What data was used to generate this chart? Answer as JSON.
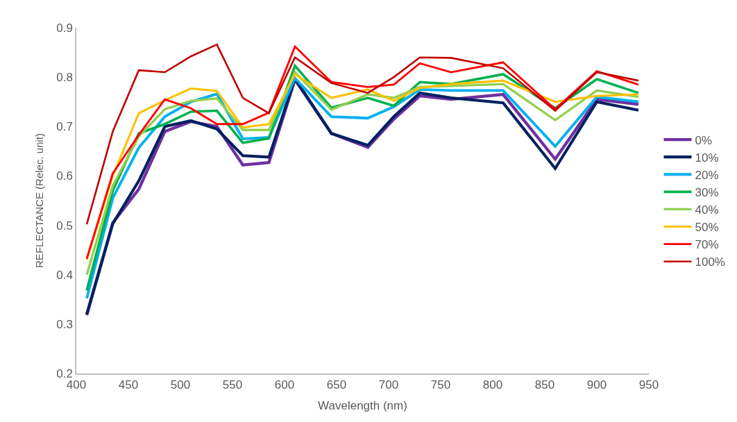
{
  "chart_data": {
    "type": "line",
    "xlabel": "Wavelength (nm)",
    "ylabel": "REFLECTANCE (Relec. unit)",
    "x": [
      410,
      435,
      460,
      485,
      510,
      535,
      560,
      585,
      610,
      645,
      680,
      705,
      730,
      760,
      810,
      860,
      900,
      940
    ],
    "series": [
      {
        "name": "0%",
        "color": "#7030a0",
        "values": [
          0.318,
          0.505,
          0.573,
          0.69,
          0.71,
          0.7,
          0.622,
          0.627,
          0.795,
          0.686,
          0.658,
          0.715,
          0.762,
          0.755,
          0.765,
          0.634,
          0.755,
          0.745
        ]
      },
      {
        "name": "10%",
        "color": "#002060",
        "values": [
          0.32,
          0.503,
          0.59,
          0.7,
          0.712,
          0.695,
          0.641,
          0.638,
          0.797,
          0.686,
          0.662,
          0.72,
          0.768,
          0.758,
          0.748,
          0.615,
          0.75,
          0.733
        ]
      },
      {
        "name": "20%",
        "color": "#00b0f0",
        "values": [
          0.352,
          0.555,
          0.657,
          0.72,
          0.75,
          0.766,
          0.675,
          0.678,
          0.798,
          0.72,
          0.717,
          0.74,
          0.775,
          0.773,
          0.773,
          0.66,
          0.76,
          0.75
        ]
      },
      {
        "name": "30%",
        "color": "#00b050",
        "values": [
          0.368,
          0.57,
          0.686,
          0.705,
          0.73,
          0.732,
          0.667,
          0.676,
          0.823,
          0.738,
          0.758,
          0.742,
          0.79,
          0.786,
          0.806,
          0.737,
          0.796,
          0.768
        ]
      },
      {
        "name": "40%",
        "color": "#92d050",
        "values": [
          0.4,
          0.58,
          0.68,
          0.735,
          0.752,
          0.757,
          0.693,
          0.693,
          0.81,
          0.734,
          0.765,
          0.758,
          0.78,
          0.782,
          0.786,
          0.713,
          0.773,
          0.76
        ]
      },
      {
        "name": "50%",
        "color": "#ffc000",
        "values": [
          0.43,
          0.6,
          0.727,
          0.753,
          0.777,
          0.772,
          0.698,
          0.705,
          0.806,
          0.758,
          0.775,
          0.752,
          0.778,
          0.786,
          0.793,
          0.75,
          0.762,
          0.765
        ]
      },
      {
        "name": "70%",
        "color": "#ff0000",
        "values": [
          0.432,
          0.605,
          0.683,
          0.755,
          0.737,
          0.705,
          0.705,
          0.728,
          0.862,
          0.79,
          0.78,
          0.785,
          0.828,
          0.81,
          0.83,
          0.735,
          0.812,
          0.785
        ]
      },
      {
        "name": "100%",
        "color": "#c00000",
        "values": [
          0.502,
          0.69,
          0.814,
          0.81,
          0.842,
          0.866,
          0.758,
          0.727,
          0.84,
          0.788,
          0.768,
          0.8,
          0.84,
          0.839,
          0.818,
          0.732,
          0.81,
          0.793
        ]
      }
    ],
    "xlim": [
      400,
      950
    ],
    "xticks": [
      400,
      450,
      500,
      550,
      600,
      650,
      700,
      750,
      800,
      850,
      900,
      950
    ],
    "ylim": [
      0.2,
      0.9
    ],
    "yticks": [
      0.2,
      0.3,
      0.4,
      0.5,
      0.6,
      0.7,
      0.8,
      0.9
    ],
    "legend": "right",
    "grid": false,
    "marker": "none",
    "line_style": "solid"
  }
}
